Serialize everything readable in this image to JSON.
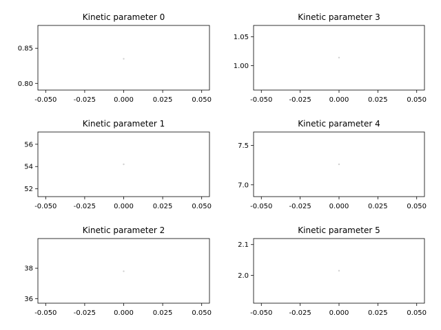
{
  "chart_data": [
    {
      "type": "scatter",
      "title": "Kinetic parameter 0",
      "xlabel": "",
      "ylabel": "",
      "xlim": [
        -0.055,
        0.055
      ],
      "ylim": [
        0.7905,
        0.8825
      ],
      "xticks": [
        -0.05,
        -0.025,
        0.0,
        0.025,
        0.05
      ],
      "xtick_labels": [
        "-0.050",
        "-0.025",
        "0.000",
        "0.025",
        "0.050"
      ],
      "yticks": [
        0.8,
        0.85
      ],
      "ytick_labels": [
        "0.80",
        "0.85"
      ],
      "points": [
        {
          "x": 0.0,
          "y": 0.835
        }
      ],
      "point_color": "#d0d0d0"
    },
    {
      "type": "scatter",
      "title": "Kinetic parameter 1",
      "xlabel": "",
      "ylabel": "",
      "xlim": [
        -0.055,
        0.055
      ],
      "ylim": [
        51.3,
        57.1
      ],
      "xticks": [
        -0.05,
        -0.025,
        0.0,
        0.025,
        0.05
      ],
      "xtick_labels": [
        "-0.050",
        "-0.025",
        "0.000",
        "0.025",
        "0.050"
      ],
      "yticks": [
        52,
        54,
        56
      ],
      "ytick_labels": [
        "52",
        "54",
        "56"
      ],
      "points": [
        {
          "x": 0.0,
          "y": 54.2
        }
      ],
      "point_color": "#d0d0d0"
    },
    {
      "type": "scatter",
      "title": "Kinetic parameter 2",
      "xlabel": "",
      "ylabel": "",
      "xlim": [
        -0.055,
        0.055
      ],
      "ylim": [
        35.7,
        39.95
      ],
      "xticks": [
        -0.05,
        -0.025,
        0.0,
        0.025,
        0.05
      ],
      "xtick_labels": [
        "-0.050",
        "-0.025",
        "0.000",
        "0.025",
        "0.050"
      ],
      "yticks": [
        36,
        38
      ],
      "ytick_labels": [
        "36",
        "38"
      ],
      "points": [
        {
          "x": 0.0,
          "y": 37.8
        }
      ],
      "point_color": "#d0d0d0"
    },
    {
      "type": "scatter",
      "title": "Kinetic parameter 3",
      "xlabel": "",
      "ylabel": "",
      "xlim": [
        -0.055,
        0.055
      ],
      "ylim": [
        0.9578,
        1.0697
      ],
      "xticks": [
        -0.05,
        -0.025,
        0.0,
        0.025,
        0.05
      ],
      "xtick_labels": [
        "-0.050",
        "-0.025",
        "0.000",
        "0.025",
        "0.050"
      ],
      "yticks": [
        1.0,
        1.05
      ],
      "ytick_labels": [
        "1.00",
        "1.05"
      ],
      "points": [
        {
          "x": 0.0,
          "y": 1.014
        }
      ],
      "point_color": "#d0d0d0"
    },
    {
      "type": "scatter",
      "title": "Kinetic parameter 4",
      "xlabel": "",
      "ylabel": "",
      "xlim": [
        -0.055,
        0.055
      ],
      "ylim": [
        6.85,
        7.67
      ],
      "xticks": [
        -0.05,
        -0.025,
        0.0,
        0.025,
        0.05
      ],
      "xtick_labels": [
        "-0.050",
        "-0.025",
        "0.000",
        "0.025",
        "0.050"
      ],
      "yticks": [
        7.0,
        7.5
      ],
      "ytick_labels": [
        "7.0",
        "7.5"
      ],
      "points": [
        {
          "x": 0.0,
          "y": 7.26
        }
      ],
      "point_color": "#d0d0d0"
    },
    {
      "type": "scatter",
      "title": "Kinetic parameter 5",
      "xlabel": "",
      "ylabel": "",
      "xlim": [
        -0.055,
        0.055
      ],
      "ylim": [
        1.9095,
        2.1195
      ],
      "xticks": [
        -0.05,
        -0.025,
        0.0,
        0.025,
        0.05
      ],
      "xtick_labels": [
        "-0.050",
        "-0.025",
        "0.000",
        "0.025",
        "0.050"
      ],
      "yticks": [
        2.0,
        2.1
      ],
      "ytick_labels": [
        "2.0",
        "2.1"
      ],
      "points": [
        {
          "x": 0.0,
          "y": 2.015
        }
      ],
      "point_color": "#d0d0d0"
    }
  ]
}
